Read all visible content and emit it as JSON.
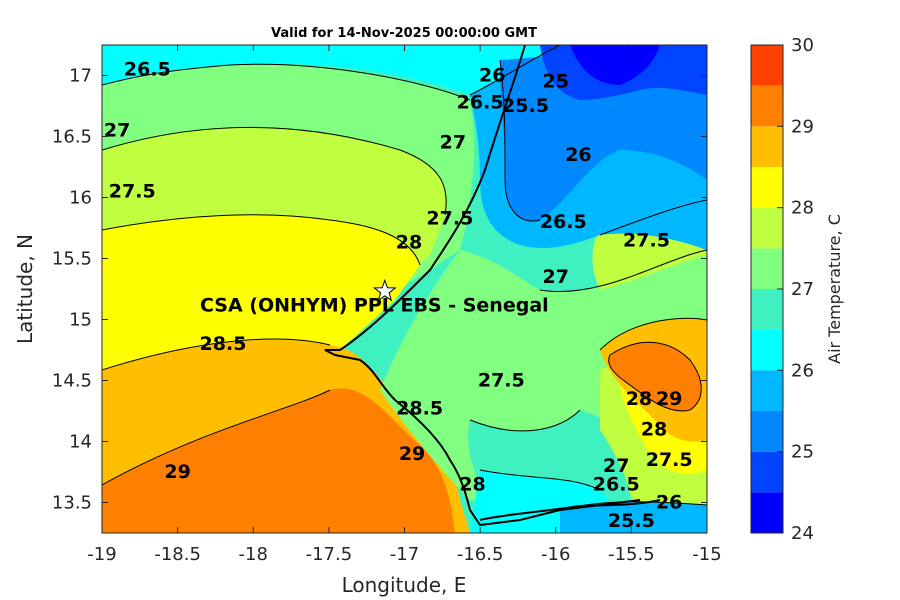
{
  "chart_data": {
    "type": "contour",
    "title": "Valid for 14-Nov-2025 00:00:00 GMT",
    "xlabel": "Longitude, E",
    "ylabel": "Latitude, N",
    "xlim": [
      -19,
      -15
    ],
    "ylim": [
      13.25,
      17.25
    ],
    "x_ticks": [
      "-19",
      "-18.5",
      "-18",
      "-17.5",
      "-17",
      "-16.5",
      "-16",
      "-15.5",
      "-15"
    ],
    "y_ticks": [
      "13.5",
      "14",
      "14.5",
      "15",
      "15.5",
      "16",
      "16.5",
      "17"
    ],
    "colorbar": {
      "label": "Air Temperature, C",
      "min": 24,
      "max": 30,
      "step": 0.5,
      "ticks": [
        "24",
        "25",
        "26",
        "27",
        "28",
        "29",
        "30"
      ],
      "colors": [
        "#0000ff",
        "#0044ff",
        "#0088ff",
        "#00b8ff",
        "#00ffff",
        "#3ff0c0",
        "#80ff80",
        "#bfff40",
        "#ffff00",
        "#ffbf00",
        "#ff8000",
        "#ff4000"
      ]
    },
    "contour_labels": [
      {
        "text": "26.5",
        "lon": -18.7,
        "lat": 17.0
      },
      {
        "text": "27",
        "lon": -18.9,
        "lat": 16.5
      },
      {
        "text": "27.5",
        "lon": -18.8,
        "lat": 16.0
      },
      {
        "text": "28",
        "lon": -16.97,
        "lat": 15.58
      },
      {
        "text": "27.5",
        "lon": -16.7,
        "lat": 15.78
      },
      {
        "text": "27",
        "lon": -16.68,
        "lat": 16.4
      },
      {
        "text": "26.5",
        "lon": -16.5,
        "lat": 16.73
      },
      {
        "text": "26",
        "lon": -16.42,
        "lat": 16.95
      },
      {
        "text": "25.5",
        "lon": -16.2,
        "lat": 16.7
      },
      {
        "text": "25",
        "lon": -16.0,
        "lat": 16.9
      },
      {
        "text": "26",
        "lon": -15.85,
        "lat": 16.3
      },
      {
        "text": "26.5",
        "lon": -15.95,
        "lat": 15.75
      },
      {
        "text": "27.5",
        "lon": -15.4,
        "lat": 15.6
      },
      {
        "text": "27",
        "lon": -16.0,
        "lat": 15.3
      },
      {
        "text": "28.5",
        "lon": -18.2,
        "lat": 14.75
      },
      {
        "text": "27.5",
        "lon": -16.36,
        "lat": 14.45
      },
      {
        "text": "28.5",
        "lon": -16.9,
        "lat": 14.22
      },
      {
        "text": "29",
        "lon": -16.95,
        "lat": 13.85
      },
      {
        "text": "29",
        "lon": -18.5,
        "lat": 13.7
      },
      {
        "text": "28",
        "lon": -16.55,
        "lat": 13.6
      },
      {
        "text": "28",
        "lon": -15.45,
        "lat": 14.3
      },
      {
        "text": "29",
        "lon": -15.25,
        "lat": 14.3
      },
      {
        "text": "28",
        "lon": -15.35,
        "lat": 14.05
      },
      {
        "text": "27.5",
        "lon": -15.25,
        "lat": 13.8
      },
      {
        "text": "27",
        "lon": -15.6,
        "lat": 13.75
      },
      {
        "text": "26.5",
        "lon": -15.6,
        "lat": 13.6
      },
      {
        "text": "26",
        "lon": -15.25,
        "lat": 13.45
      },
      {
        "text": "25.5",
        "lon": -15.5,
        "lat": 13.3
      }
    ],
    "marker": {
      "label": "CSA (ONHYM) PPL EBS  - Senegal",
      "lon": -17.13,
      "lat": 15.23
    }
  }
}
